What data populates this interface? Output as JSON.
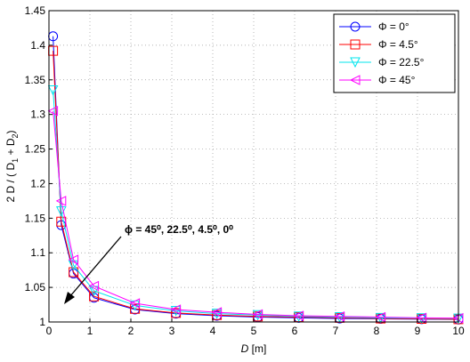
{
  "chart_data": {
    "type": "line",
    "xlabel_parts": [
      "D",
      " [m]"
    ],
    "ylabel_parts": [
      "2 D / ( D",
      "1",
      " + D",
      "2",
      ")"
    ],
    "annotation": "ϕ = 45⁰, 22.5⁰, 4.5⁰, 0⁰",
    "x": [
      0.1,
      0.3,
      0.6,
      1.1,
      2.1,
      3.1,
      4.1,
      5.1,
      6.1,
      7.1,
      8.1,
      9.1,
      10
    ],
    "series": [
      {
        "name": "Φ = 0°",
        "color": "#0000ff",
        "marker": "circle",
        "values": [
          1.413,
          1.14,
          1.07,
          1.035,
          1.018,
          1.012,
          1.009,
          1.007,
          1.006,
          1.005,
          1.0045,
          1.004,
          1.0036
        ]
      },
      {
        "name": "Φ = 4.5°",
        "color": "#ff0000",
        "marker": "square",
        "values": [
          1.392,
          1.145,
          1.072,
          1.037,
          1.019,
          1.013,
          1.01,
          1.008,
          1.007,
          1.006,
          1.005,
          1.0045,
          1.004
        ]
      },
      {
        "name": "Φ = 22.5°",
        "color": "#00e5ee",
        "marker": "triangle-down",
        "values": [
          1.335,
          1.16,
          1.082,
          1.045,
          1.024,
          1.016,
          1.012,
          1.01,
          1.008,
          1.007,
          1.006,
          1.0055,
          1.005
        ]
      },
      {
        "name": "Φ = 45°",
        "color": "#ff00ff",
        "marker": "triangle-left",
        "values": [
          1.305,
          1.175,
          1.09,
          1.052,
          1.027,
          1.018,
          1.014,
          1.011,
          1.009,
          1.008,
          1.007,
          1.006,
          1.0055
        ]
      }
    ],
    "xlim": [
      0,
      10
    ],
    "xticks": [
      0,
      1,
      2,
      3,
      4,
      5,
      6,
      7,
      8,
      9,
      10
    ],
    "ylim": [
      1,
      1.45
    ],
    "yticks": [
      1,
      1.05,
      1.1,
      1.15,
      1.2,
      1.25,
      1.3,
      1.35,
      1.4,
      1.45
    ],
    "grid": true,
    "legend": "northeast"
  }
}
